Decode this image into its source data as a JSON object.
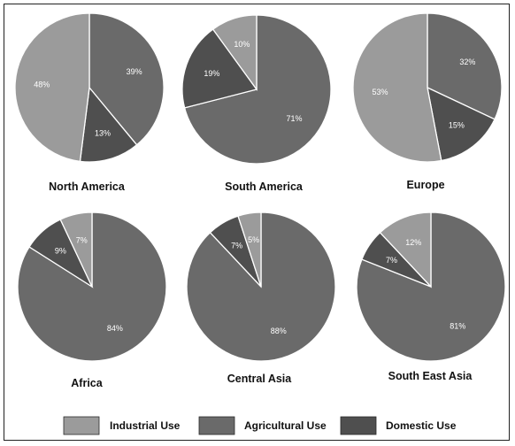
{
  "chart_data": {
    "type": "pie",
    "slice_colors": {
      "Industrial Use": "#9b9b9b",
      "Agricultural Use": "#6a6a6a",
      "Domestic Use": "#4f4f4f"
    },
    "legend": [
      "Industrial Use",
      "Agricultural Use",
      "Domestic Use"
    ],
    "legend_position": "bottom",
    "charts": [
      {
        "title": "North America",
        "slices": [
          {
            "name": "Agricultural Use",
            "value": 39,
            "label": "39%"
          },
          {
            "name": "Domestic Use",
            "value": 13,
            "label": "13%"
          },
          {
            "name": "Industrial Use",
            "value": 48,
            "label": "48%"
          }
        ]
      },
      {
        "title": "South America",
        "slices": [
          {
            "name": "Agricultural Use",
            "value": 71,
            "label": "71%"
          },
          {
            "name": "Domestic Use",
            "value": 19,
            "label": "19%"
          },
          {
            "name": "Industrial Use",
            "value": 10,
            "label": "10%"
          }
        ]
      },
      {
        "title": "Europe",
        "slices": [
          {
            "name": "Agricultural Use",
            "value": 32,
            "label": "32%"
          },
          {
            "name": "Domestic Use",
            "value": 15,
            "label": "15%"
          },
          {
            "name": "Industrial Use",
            "value": 53,
            "label": "53%"
          }
        ]
      },
      {
        "title": "Africa",
        "slices": [
          {
            "name": "Agricultural Use",
            "value": 84,
            "label": "84%"
          },
          {
            "name": "Domestic Use",
            "value": 9,
            "label": "9%"
          },
          {
            "name": "Industrial Use",
            "value": 7,
            "label": "7%"
          }
        ]
      },
      {
        "title": "Central Asia",
        "slices": [
          {
            "name": "Agricultural Use",
            "value": 88,
            "label": "88%"
          },
          {
            "name": "Domestic Use",
            "value": 7,
            "label": "7%"
          },
          {
            "name": "Industrial Use",
            "value": 5,
            "label": "5%"
          }
        ]
      },
      {
        "title": "South East Asia",
        "slices": [
          {
            "name": "Agricultural Use",
            "value": 81,
            "label": "81%"
          },
          {
            "name": "Domestic Use",
            "value": 7,
            "label": "7%"
          },
          {
            "name": "Industrial Use",
            "value": 12,
            "label": "12%"
          }
        ]
      }
    ]
  }
}
